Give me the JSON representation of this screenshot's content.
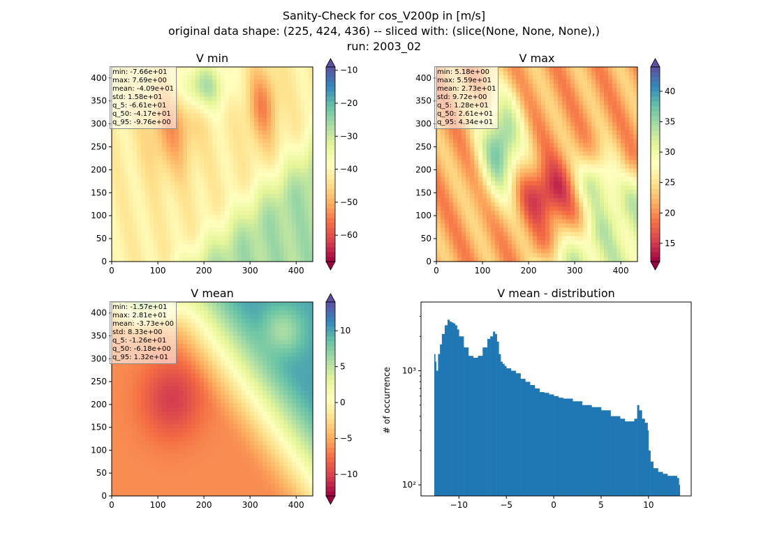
{
  "figure": {
    "title_lines": [
      "Sanity-Check for cos_V200p in [m/s]",
      "original data shape: (225, 424, 436) -- sliced with: (slice(None, None, None),)",
      "run: 2003_02"
    ]
  },
  "chart_data": [
    {
      "type": "heatmap",
      "title": "V min",
      "colormap": "Spectral",
      "xlim": [
        0,
        436
      ],
      "ylim": [
        0,
        424
      ],
      "xticks": [
        0,
        100,
        200,
        300,
        400
      ],
      "yticks": [
        0,
        50,
        100,
        150,
        200,
        250,
        300,
        350,
        400
      ],
      "colorbar": {
        "min": -68,
        "max": -9,
        "ticks": [
          -60,
          -50,
          -40,
          -30,
          -20,
          -10
        ],
        "extend": "both"
      },
      "stats": [
        "min: -7.66e+01",
        "max: 7.69e+00",
        "mean: -4.09e+01",
        "std: 1.58e+01",
        "q_5: -6.61e+01",
        "q_50: -4.17e+01",
        "q_95: -9.76e+00"
      ]
    },
    {
      "type": "heatmap",
      "title": "V max",
      "colormap": "Spectral",
      "xlim": [
        0,
        436
      ],
      "ylim": [
        0,
        424
      ],
      "xticks": [
        0,
        100,
        200,
        300,
        400
      ],
      "yticks": [
        0,
        50,
        100,
        150,
        200,
        250,
        300,
        350,
        400
      ],
      "colorbar": {
        "min": 12,
        "max": 44,
        "ticks": [
          15,
          20,
          25,
          30,
          35,
          40
        ],
        "extend": "both"
      },
      "stats": [
        "min: 5.18e+00",
        "max: 5.59e+01",
        "mean: 2.73e+01",
        "std: 9.72e+00",
        "q_5: 1.28e+01",
        "q_50: 2.61e+01",
        "q_95: 4.34e+01"
      ]
    },
    {
      "type": "heatmap",
      "title": "V mean",
      "colormap": "Spectral",
      "xlim": [
        0,
        436
      ],
      "ylim": [
        0,
        424
      ],
      "xticks": [
        0,
        100,
        200,
        300,
        400
      ],
      "yticks": [
        0,
        50,
        100,
        150,
        200,
        250,
        300,
        350,
        400
      ],
      "colorbar": {
        "min": -13,
        "max": 14,
        "ticks": [
          -10,
          -5,
          0,
          5,
          10
        ],
        "extend": "both"
      },
      "stats": [
        "min: -1.57e+01",
        "max: 2.81e+01",
        "mean: -3.73e+00",
        "std: 8.33e+00",
        "q_5: -1.26e+01",
        "q_50: -6.18e+00",
        "q_95: 1.32e+01"
      ]
    },
    {
      "type": "bar",
      "title": "V mean - distribution",
      "ylabel": "# of occurrence",
      "xlabel": "",
      "yscale": "log",
      "xlim": [
        -14,
        14.5
      ],
      "ylim": [
        80,
        4000
      ],
      "xticks": [
        -10,
        -5,
        0,
        5,
        10
      ],
      "ytick_labels": [
        "10²",
        "10³"
      ],
      "ytick_values": [
        100,
        1000
      ],
      "bar_color": "#1f77b4",
      "histogram": {
        "x": [
          -12.6,
          -12.5,
          -12.4,
          -12.2,
          -12.0,
          -11.8,
          -11.5,
          -11.2,
          -11.0,
          -10.8,
          -10.6,
          -10.4,
          -10.2,
          -10.0,
          -9.5,
          -9.0,
          -8.5,
          -8.0,
          -7.5,
          -7.0,
          -6.7,
          -6.4,
          -6.2,
          -6.0,
          -5.8,
          -5.6,
          -5.4,
          -5.2,
          -5.0,
          -4.5,
          -4.0,
          -3.5,
          -3.0,
          -2.5,
          -2.0,
          -1.5,
          -1.0,
          -0.5,
          0.0,
          0.5,
          1.0,
          2.0,
          3.0,
          4.0,
          5.0,
          6.0,
          7.0,
          7.5,
          8.0,
          8.5,
          8.8,
          9.0,
          9.3,
          9.6,
          9.9,
          10.0,
          10.2,
          10.5,
          11.0,
          11.5,
          12.0,
          12.5,
          13.0,
          13.2
        ],
        "y": [
          1400,
          1200,
          1000,
          1400,
          1700,
          2100,
          2500,
          2800,
          2700,
          2650,
          2600,
          2500,
          2300,
          2000,
          1600,
          1350,
          1300,
          1350,
          1600,
          1900,
          2000,
          2200,
          2100,
          1800,
          1400,
          1200,
          1150,
          1100,
          1050,
          1000,
          950,
          850,
          800,
          750,
          700,
          650,
          640,
          620,
          600,
          580,
          570,
          540,
          500,
          480,
          450,
          400,
          380,
          360,
          360,
          380,
          500,
          450,
          380,
          350,
          300,
          200,
          160,
          140,
          130,
          125,
          120,
          120,
          115,
          100
        ]
      }
    }
  ]
}
